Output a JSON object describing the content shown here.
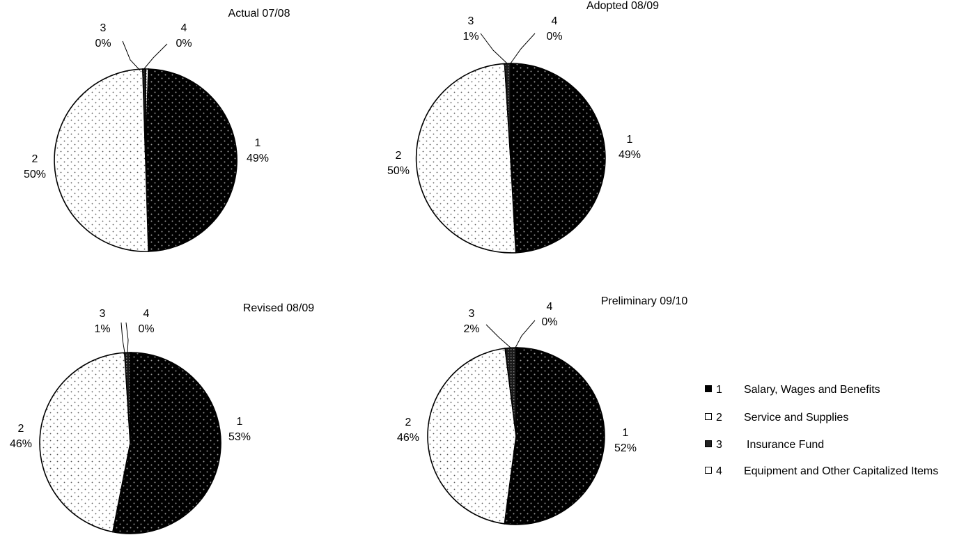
{
  "chart_data": [
    {
      "type": "pie",
      "title": "Actual 07/08",
      "slices": [
        {
          "key": "1",
          "value": 49,
          "label": "49%"
        },
        {
          "key": "2",
          "value": 50,
          "label": "50%"
        },
        {
          "key": "3",
          "value": 0.5,
          "label": "0%"
        },
        {
          "key": "4",
          "value": 0.5,
          "label": "0%"
        }
      ]
    },
    {
      "type": "pie",
      "title": "Adopted 08/09",
      "slices": [
        {
          "key": "1",
          "value": 49,
          "label": "49%"
        },
        {
          "key": "2",
          "value": 50,
          "label": "50%"
        },
        {
          "key": "3",
          "value": 1,
          "label": "1%"
        },
        {
          "key": "4",
          "value": 0.2,
          "label": "0%"
        }
      ]
    },
    {
      "type": "pie",
      "title": "Revised 08/09",
      "slices": [
        {
          "key": "1",
          "value": 53,
          "label": "53%"
        },
        {
          "key": "2",
          "value": 46,
          "label": "46%"
        },
        {
          "key": "3",
          "value": 1,
          "label": "1%"
        },
        {
          "key": "4",
          "value": 0.2,
          "label": "0%"
        }
      ]
    },
    {
      "type": "pie",
      "title": "Preliminary 09/10",
      "slices": [
        {
          "key": "1",
          "value": 52,
          "label": "52%"
        },
        {
          "key": "2",
          "value": 46,
          "label": "46%"
        },
        {
          "key": "3",
          "value": 2,
          "label": "2%"
        },
        {
          "key": "4",
          "value": 0.2,
          "label": "0%"
        }
      ]
    }
  ],
  "legend": [
    {
      "key": "1",
      "label": "Salary, Wages and Benefits",
      "pattern": "dark-dots"
    },
    {
      "key": "2",
      "label": "Service and Supplies",
      "pattern": "light-dots"
    },
    {
      "key": "3",
      "label": "Insurance Fund",
      "pattern": "dark-grid"
    },
    {
      "key": "4",
      "label": "Equipment and Other Capitalized Items",
      "pattern": "light-grid"
    }
  ]
}
